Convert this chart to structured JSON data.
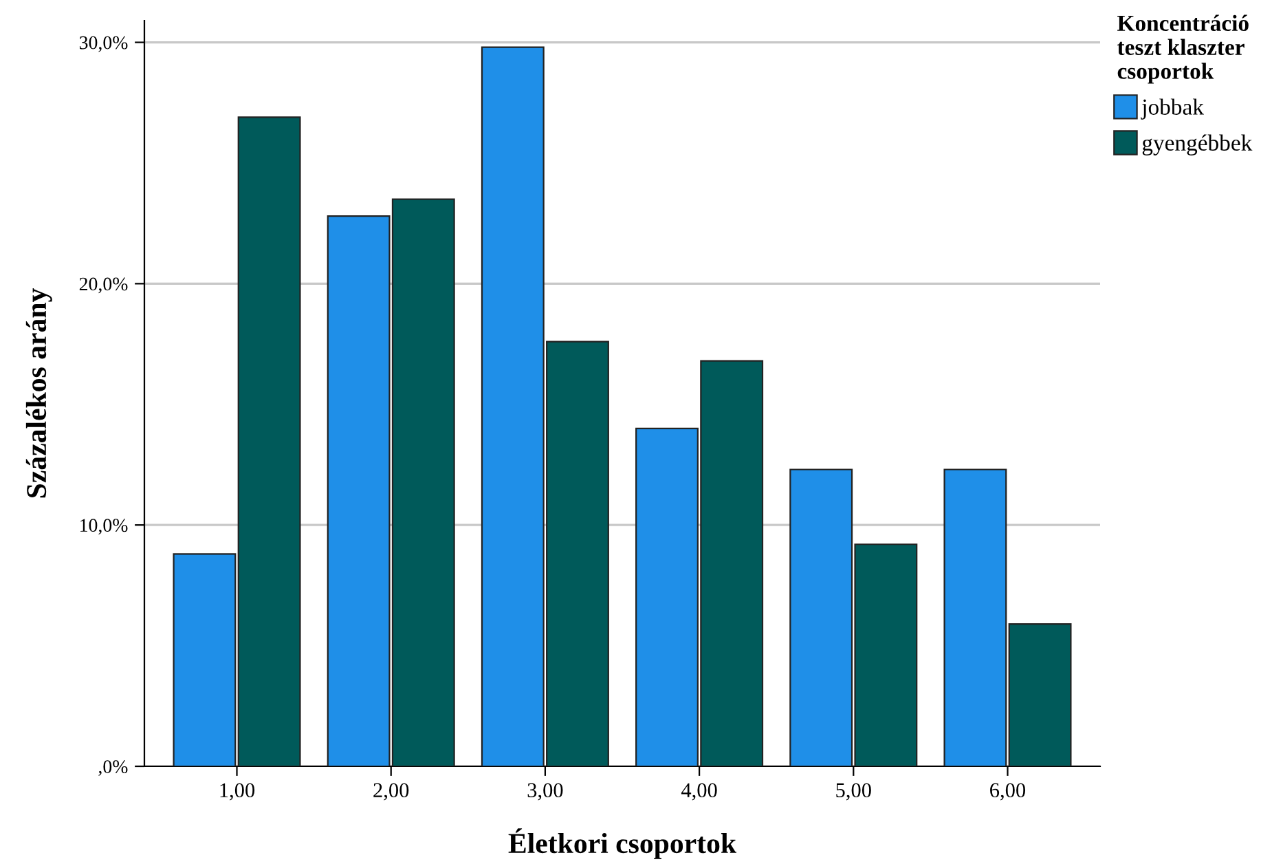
{
  "chart_data": {
    "type": "bar",
    "xlabel": "Életkori csoportok",
    "ylabel": "Százalékos arány",
    "legend_title": "Koncentráció\nteszt klaszter\ncsoportok",
    "categories": [
      "1,00",
      "2,00",
      "3,00",
      "4,00",
      "5,00",
      "6,00"
    ],
    "series": [
      {
        "name": "jobbak",
        "color": "#1f8fe8",
        "values": [
          8.8,
          22.8,
          29.8,
          14.0,
          12.3,
          12.3
        ]
      },
      {
        "name": "gyengébbek",
        "color": "#005a5a",
        "values": [
          26.9,
          23.5,
          17.6,
          16.8,
          9.2,
          5.9
        ]
      }
    ],
    "ylim": [
      0,
      30.9
    ],
    "yticks": [
      {
        "value": 0,
        "label": ",0%"
      },
      {
        "value": 10,
        "label": "10,0%"
      },
      {
        "value": 20,
        "label": "20,0%"
      },
      {
        "value": 30,
        "label": "30,0%"
      }
    ],
    "grid": "y",
    "legend": "top right"
  }
}
